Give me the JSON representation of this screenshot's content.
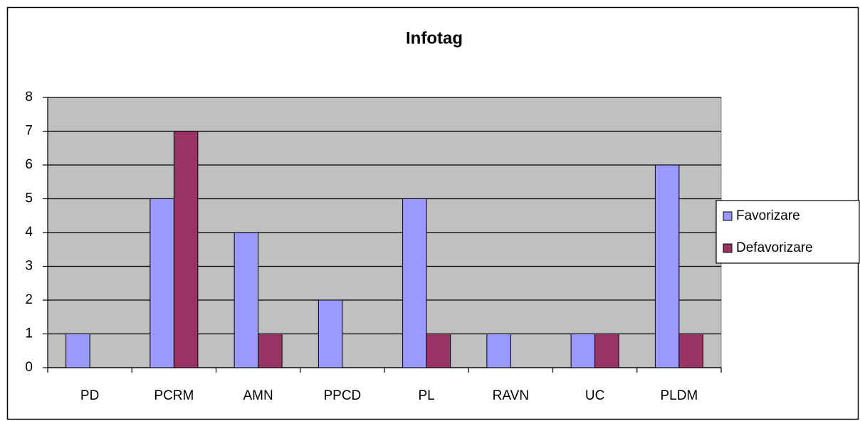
{
  "chart_data": {
    "type": "bar",
    "title": "Infotag",
    "categories": [
      "PD",
      "PCRM",
      "AMN",
      "PPCD",
      "PL",
      "RAVN",
      "UC",
      "PLDM"
    ],
    "series": [
      {
        "name": "Favorizare",
        "color": "#9999ff",
        "values": [
          1,
          5,
          4,
          2,
          5,
          1,
          1,
          6
        ]
      },
      {
        "name": "Defavorizare",
        "color": "#993366",
        "values": [
          0,
          7,
          1,
          0,
          1,
          0,
          1,
          1
        ]
      }
    ],
    "ylim": [
      0,
      8
    ],
    "yticks": [
      0,
      1,
      2,
      3,
      4,
      5,
      6,
      7,
      8
    ],
    "grid": true,
    "legend": "right"
  }
}
